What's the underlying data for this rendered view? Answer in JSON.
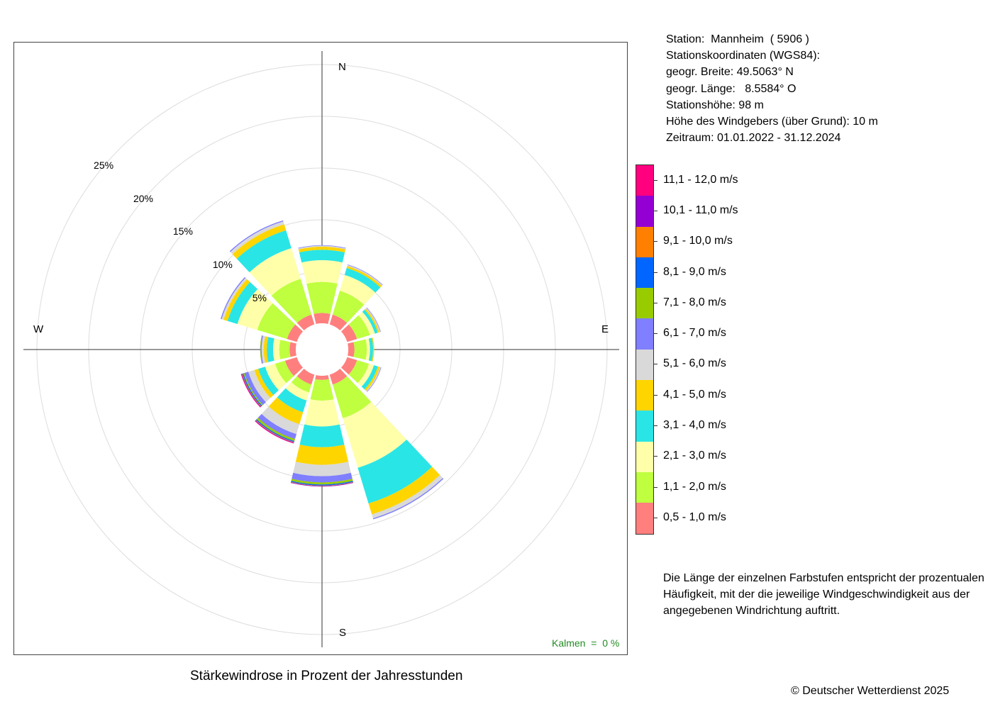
{
  "station": {
    "lines": [
      "Station:  Mannheim  ( 5906 )",
      "Stationskoordinaten (WGS84):",
      "geogr. Breite: 49.5063° N",
      "geogr. Länge:   8.5584° O",
      "Stationshöhe: 98 m",
      "Höhe des Windgebers (über Grund): 10 m",
      "Zeitraum: 01.01.2022 - 31.12.2024"
    ]
  },
  "title": "Stärkewindrose in Prozent der Jahresstunden",
  "copyright": "© Deutscher Wetterdienst  2025",
  "calms": "Kalmen  =  0 %",
  "note": "Die Länge der einzelnen Farbstufen entspricht der prozentualen Häufigkeit, mit der die jeweilige Windgeschwindigkeit aus der angegebenen Windrichtung auftritt.",
  "compass": {
    "n": "N",
    "e": "E",
    "s": "S",
    "w": "W"
  },
  "ring_labels": [
    "5%",
    "10%",
    "15%",
    "20%",
    "25%"
  ],
  "legend": {
    "classes": [
      {
        "label": "0,5 - 1,0 m/s",
        "color": "#FF7F7F"
      },
      {
        "label": "1,1 - 2,0 m/s",
        "color": "#BFFF3F"
      },
      {
        "label": "2,1 - 3,0 m/s",
        "color": "#FFFFAA"
      },
      {
        "label": "3,1 - 4,0 m/s",
        "color": "#2AE5E5"
      },
      {
        "label": "4,1 - 5,0 m/s",
        "color": "#FFD500"
      },
      {
        "label": "5,1 - 6,0 m/s",
        "color": "#D9D9D9"
      },
      {
        "label": "6,1 - 7,0 m/s",
        "color": "#7F7FFF"
      },
      {
        "label": "7,1 - 8,0 m/s",
        "color": "#99CC00"
      },
      {
        "label": "8,1 - 9,0 m/s",
        "color": "#0066FF"
      },
      {
        "label": "9,1 - 10,0 m/s",
        "color": "#FF8000"
      },
      {
        "label": "10,1 - 11,0 m/s",
        "color": "#9400D3"
      },
      {
        "label": "11,1 - 12,0 m/s",
        "color": "#FF007F"
      }
    ]
  },
  "chart_data": {
    "type": "windrose",
    "unit": "%",
    "radial_max": 25,
    "radial_ticks": [
      5,
      10,
      15,
      20,
      25
    ],
    "grid": true,
    "directions_deg": [
      0,
      30,
      60,
      90,
      120,
      150,
      180,
      210,
      240,
      270,
      300,
      330
    ],
    "series": [
      {
        "name": "0,5 - 1,0 m/s",
        "color": "#FF7F7F",
        "values": [
          1.0,
          1.0,
          1.0,
          0.6,
          1.0,
          1.0,
          0.4,
          1.0,
          1.2,
          0.6,
          1.0,
          1.0
        ]
      },
      {
        "name": "1,1 - 2,0 m/s",
        "color": "#BFFF3F",
        "values": [
          3.0,
          2.4,
          1.3,
          1.2,
          1.2,
          3.4,
          2.0,
          0.8,
          1.0,
          1.0,
          3.0,
          3.6
        ]
      },
      {
        "name": "2,1 - 3,0 m/s",
        "color": "#FFFFAA",
        "values": [
          2.1,
          1.6,
          0.5,
          0.3,
          0.5,
          5.0,
          2.5,
          0.8,
          1.0,
          0.6,
          2.0,
          3.1
        ]
      },
      {
        "name": "3,1 - 4,0 m/s",
        "color": "#2AE5E5",
        "values": [
          1.0,
          0.7,
          0.3,
          0.3,
          0.4,
          3.6,
          2.0,
          1.2,
          0.7,
          0.6,
          1.0,
          1.8
        ]
      },
      {
        "name": "4,1 - 5,0 m/s",
        "color": "#FFD500",
        "values": [
          0.3,
          0.2,
          0.15,
          0.1,
          0.2,
          1.1,
          1.7,
          1.2,
          0.4,
          0.3,
          0.4,
          0.6
        ]
      },
      {
        "name": "5,1 - 6,0 m/s",
        "color": "#D9D9D9",
        "values": [
          0.1,
          0.1,
          0.1,
          0.0,
          0.1,
          0.4,
          1.1,
          1.0,
          0.6,
          0.2,
          0.2,
          0.3
        ]
      },
      {
        "name": "6,1 - 7,0 m/s",
        "color": "#7F7FFF",
        "values": [
          0.05,
          0.05,
          0.05,
          0.0,
          0.05,
          0.1,
          0.6,
          0.5,
          0.4,
          0.1,
          0.1,
          0.1
        ]
      },
      {
        "name": "7,1 - 8,0 m/s",
        "color": "#99CC00",
        "values": [
          0.0,
          0.0,
          0.0,
          0.0,
          0.0,
          0.0,
          0.2,
          0.2,
          0.1,
          0.05,
          0.0,
          0.0
        ]
      },
      {
        "name": "8,1 - 9,0 m/s",
        "color": "#0066FF",
        "values": [
          0.0,
          0.0,
          0.0,
          0.0,
          0.0,
          0.0,
          0.1,
          0.1,
          0.1,
          0.0,
          0.0,
          0.0
        ]
      },
      {
        "name": "9,1 - 10,0 m/s",
        "color": "#FF8000",
        "values": [
          0.0,
          0.0,
          0.0,
          0.0,
          0.0,
          0.0,
          0.05,
          0.05,
          0.05,
          0.0,
          0.0,
          0.0
        ]
      },
      {
        "name": "10,1 - 11,0 m/s",
        "color": "#9400D3",
        "values": [
          0.0,
          0.0,
          0.0,
          0.0,
          0.0,
          0.0,
          0.05,
          0.05,
          0.05,
          0.0,
          0.0,
          0.0
        ]
      },
      {
        "name": "11,1 - 12,0 m/s",
        "color": "#FF007F",
        "values": [
          0.0,
          0.0,
          0.0,
          0.0,
          0.0,
          0.0,
          0.0,
          0.05,
          0.05,
          0.0,
          0.0,
          0.0
        ]
      }
    ]
  }
}
